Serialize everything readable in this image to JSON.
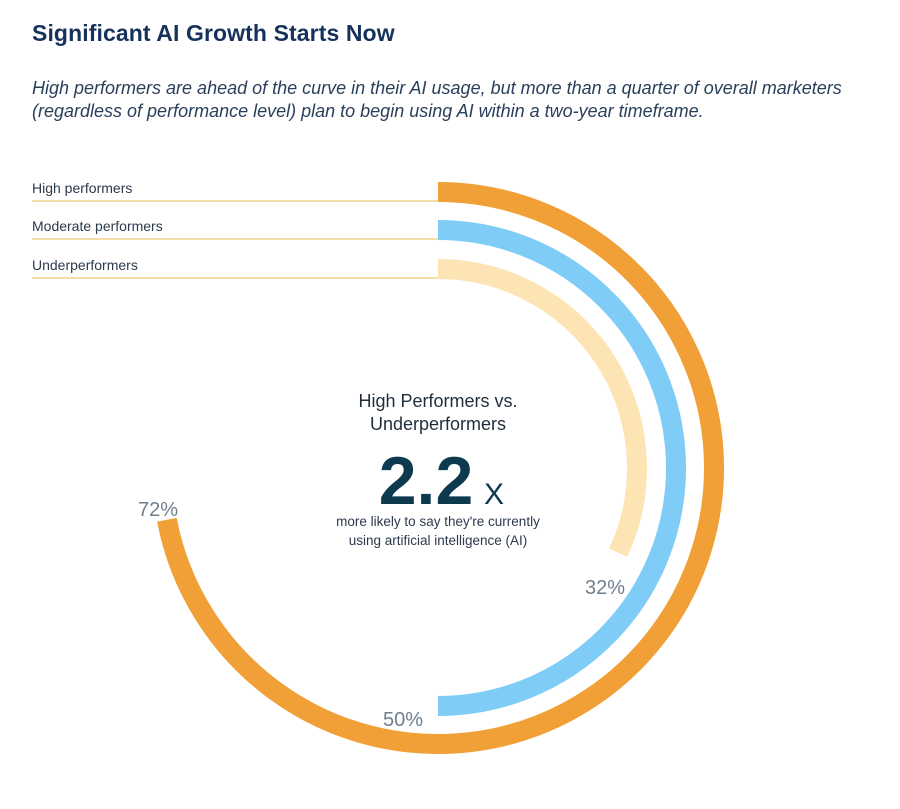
{
  "title": "Significant AI Growth Starts Now",
  "subtitle": "High performers are ahead of the curve in their AI usage, but more than a quarter of overall marketers (regardless of  performance level) plan to begin using AI within a two-year timeframe.",
  "center": {
    "heading_line1": "High Performers vs.",
    "heading_line2": "Underperformers",
    "multiplier": "2.2",
    "multiplier_unit": "X",
    "description_line1": "more likely to say they're currently",
    "description_line2": "using artificial intelligence (AI)"
  },
  "chart_data": {
    "type": "radial-bar",
    "title": "Significant AI Growth Starts Now",
    "unit": "%",
    "max": 100,
    "series": [
      {
        "name": "High performers",
        "value": 72,
        "label": "72%",
        "color": "#f0a037"
      },
      {
        "name": "Moderate performers",
        "value": 50,
        "label": "50%",
        "color": "#7fcdf7"
      },
      {
        "name": "Underperformers",
        "value": 32,
        "label": "32%",
        "color": "#fde4b5"
      }
    ],
    "legend_line_color": "#f1c870"
  }
}
